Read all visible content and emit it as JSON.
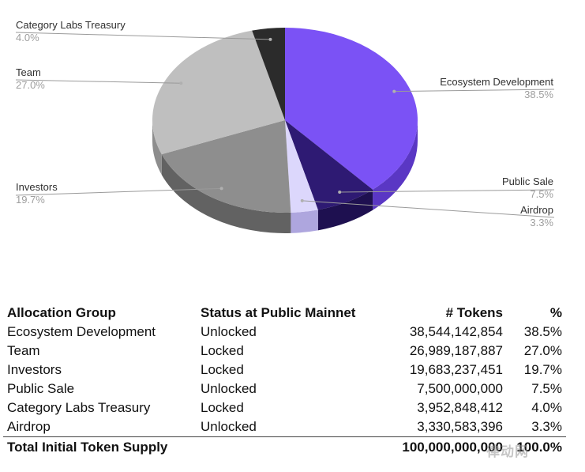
{
  "chart_data": {
    "type": "pie",
    "title": "",
    "slices": [
      {
        "label": "Ecosystem Development",
        "value": 38.5,
        "value_label": "38.5%",
        "color": "#7b52f5",
        "side_color": "#5a37c4"
      },
      {
        "label": "Public Sale",
        "value": 7.5,
        "value_label": "7.5%",
        "color": "#2e1a73",
        "side_color": "#1e1050"
      },
      {
        "label": "Airdrop",
        "value": 3.3,
        "value_label": "3.3%",
        "color": "#dcd7fc",
        "side_color": "#aea6de"
      },
      {
        "label": "Investors",
        "value": 19.7,
        "value_label": "19.7%",
        "color": "#8e8e8e",
        "side_color": "#626262"
      },
      {
        "label": "Team",
        "value": 27.0,
        "value_label": "27.0%",
        "color": "#bfbfbf",
        "side_color": "#8d8d8d"
      },
      {
        "label": "Category Labs Treasury",
        "value": 4.0,
        "value_label": "4.0%",
        "color": "#2b2b2b",
        "side_color": "#151515"
      }
    ]
  },
  "table": {
    "headers": {
      "group": "Allocation Group",
      "status": "Status at Public Mainnet",
      "tokens": "# Tokens",
      "pct": "%"
    },
    "rows": [
      {
        "group": "Ecosystem Development",
        "status": "Unlocked",
        "tokens": "38,544,142,854",
        "pct": "38.5%"
      },
      {
        "group": "Team",
        "status": "Locked",
        "tokens": "26,989,187,887",
        "pct": "27.0%"
      },
      {
        "group": "Investors",
        "status": "Locked",
        "tokens": "19,683,237,451",
        "pct": "19.7%"
      },
      {
        "group": "Public Sale",
        "status": "Unlocked",
        "tokens": "7,500,000,000",
        "pct": "7.5%"
      },
      {
        "group": "Category Labs Treasury",
        "status": "Locked",
        "tokens": "3,952,848,412",
        "pct": "4.0%"
      },
      {
        "group": "Airdrop",
        "status": "Unlocked",
        "tokens": "3,330,583,396",
        "pct": "3.3%"
      }
    ],
    "total": {
      "group": "Total Initial Token Supply",
      "tokens": "100,000,000,000",
      "pct": "100.0%"
    }
  },
  "watermark": {
    "text": "律动网"
  }
}
